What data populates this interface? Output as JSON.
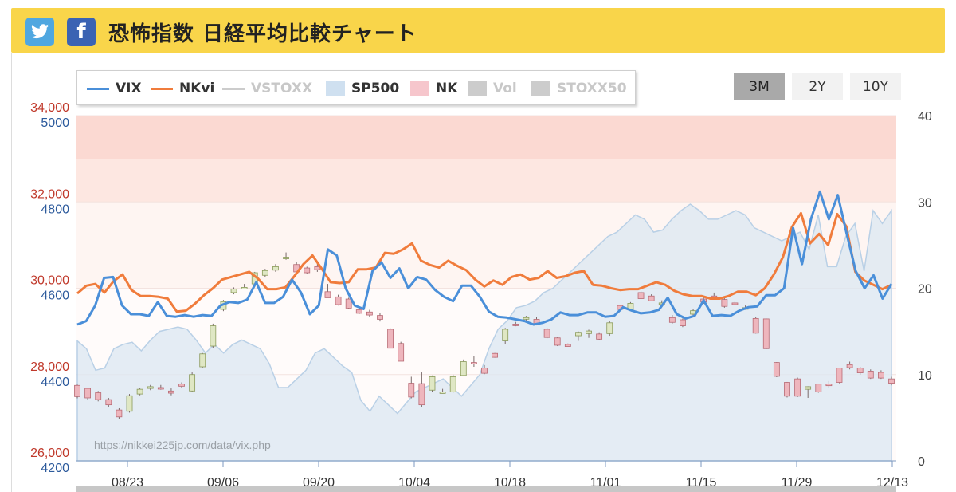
{
  "header": {
    "title": "恐怖指数 日経平均比較チャート",
    "twitter_icon": "twitter-bird-icon",
    "facebook_label": "f"
  },
  "legend": [
    {
      "label": "VIX",
      "kind": "line",
      "color": "#4a8fd9",
      "active": true
    },
    {
      "label": "NKvi",
      "kind": "line",
      "color": "#f07c3c",
      "active": true
    },
    {
      "label": "VSTOXX",
      "kind": "line",
      "color": "#cccccc",
      "active": false
    },
    {
      "label": "SP500",
      "kind": "box",
      "color": "#cfe0f0",
      "active": true
    },
    {
      "label": "NK",
      "kind": "box",
      "color": "#f6c6cc",
      "active": true
    },
    {
      "label": "Vol",
      "kind": "box",
      "color": "#cccccc",
      "active": false
    },
    {
      "label": "STOXX50",
      "kind": "box",
      "color": "#cccccc",
      "active": false
    }
  ],
  "range_buttons": [
    {
      "label": "3M",
      "active": true
    },
    {
      "label": "2Y",
      "active": false
    },
    {
      "label": "10Y",
      "active": false
    }
  ],
  "watermark": "https://nikkei225jp.com/data/vix.php",
  "colors": {
    "nk_axis": "#c0392b",
    "sp_axis": "#2c5a9c",
    "vix": "#4a8fd9",
    "nkvi": "#f07c3c",
    "sp500_area": "#dbe7f1",
    "up_candle": "#dfe7c4",
    "down_candle": "#eeb6bd"
  },
  "chart_data": {
    "type": "line",
    "x_ticks": [
      "08/23",
      "09/06",
      "09/20",
      "10/04",
      "10/18",
      "11/01",
      "11/15",
      "11/29",
      "12/13"
    ],
    "axes": {
      "nk": {
        "ticks": [
          "26,000",
          "28,000",
          "30,000",
          "32,000",
          "34,000"
        ],
        "range": [
          26000,
          34000
        ]
      },
      "sp500": {
        "ticks": [
          "4200",
          "4400",
          "4600",
          "4800",
          "5000"
        ],
        "range": [
          4200,
          5000
        ]
      },
      "vix": {
        "ticks": [
          "0",
          "10",
          "20",
          "30",
          "40"
        ],
        "range": [
          0,
          40
        ]
      }
    },
    "fear_bands": [
      {
        "from": 35,
        "to": 40,
        "color": "#fbd9d2"
      },
      {
        "from": 30,
        "to": 35,
        "color": "#fde7e1"
      },
      {
        "from": 20,
        "to": 30,
        "color": "#fef5f2"
      }
    ],
    "series": [
      {
        "name": "VIX",
        "axis": "vix",
        "values": [
          15.8,
          16.2,
          18.0,
          21.2,
          21.3,
          18.0,
          17.0,
          17.0,
          16.8,
          18.4,
          16.8,
          16.7,
          16.9,
          16.7,
          16.9,
          16.8,
          18.0,
          18.4,
          18.3,
          18.7,
          20.7,
          18.3,
          18.3,
          19.0,
          21.0,
          19.5,
          17.0,
          18.0,
          24.5,
          23.8,
          20.0,
          18.0,
          17.6,
          22.0,
          23.0,
          21.2,
          22.3,
          20.0,
          21.3,
          21.0,
          19.8,
          19.0,
          18.5,
          20.3,
          20.3,
          19.0,
          17.3,
          16.7,
          16.6,
          16.4,
          16.2,
          15.8,
          16.0,
          16.4,
          17.2,
          16.9,
          16.9,
          17.2,
          17.2,
          16.7,
          16.8,
          17.8,
          17.4,
          17.1,
          17.2,
          17.5,
          18.9,
          17.0,
          16.5,
          16.8,
          18.6,
          16.8,
          16.9,
          16.8,
          17.4,
          17.8,
          17.9,
          19.2,
          19.2,
          20.0,
          27.0,
          22.8,
          28.0,
          31.2,
          28.0,
          30.8,
          26.3,
          22.0,
          20.0,
          21.5,
          18.8,
          20.5
        ]
      },
      {
        "name": "NKvi",
        "axis": "vix",
        "values": [
          19.4,
          20.3,
          20.5,
          19.5,
          20.8,
          21.6,
          19.8,
          19.1,
          19.1,
          19.0,
          18.8,
          17.3,
          17.4,
          18.2,
          19.2,
          20.0,
          21.0,
          21.3,
          21.6,
          21.9,
          21.1,
          19.9,
          19.9,
          20.1,
          21.4,
          22.8,
          23.8,
          22.3,
          20.7,
          20.6,
          20.7,
          22.2,
          22.2,
          22.4,
          24.1,
          24.0,
          24.5,
          25.2,
          23.2,
          22.7,
          22.4,
          23.2,
          22.6,
          22.1,
          21.0,
          20.2,
          20.9,
          20.4,
          21.3,
          21.6,
          21.0,
          21.2,
          22.0,
          21.2,
          21.4,
          21.8,
          22.0,
          20.4,
          20.3,
          20.0,
          19.8,
          19.9,
          19.9,
          20.3,
          20.7,
          20.4,
          19.7,
          19.3,
          19.1,
          19.1,
          18.8,
          18.8,
          19.1,
          19.6,
          19.6,
          19.2,
          20.0,
          21.6,
          23.6,
          27.1,
          28.7,
          25.2,
          26.3,
          25.0,
          28.6,
          27.2,
          21.9,
          20.9,
          20.4,
          19.9,
          20.4
        ]
      },
      {
        "name": "SP500",
        "axis": "sp500",
        "values": [
          4478,
          4460,
          4410,
          4415,
          4460,
          4470,
          4475,
          4455,
          4480,
          4500,
          4505,
          4510,
          4505,
          4480,
          4450,
          4470,
          4450,
          4470,
          4480,
          4470,
          4460,
          4425,
          4370,
          4370,
          4390,
          4410,
          4450,
          4460,
          4440,
          4420,
          4405,
          4340,
          4315,
          4350,
          4330,
          4310,
          4335,
          4360,
          4370,
          4380,
          4390,
          4370,
          4350,
          4375,
          4400,
          4460,
          4505,
          4525,
          4555,
          4560,
          4570,
          4590,
          4600,
          4620,
          4640,
          4660,
          4680,
          4700,
          4720,
          4730,
          4750,
          4770,
          4760,
          4730,
          4735,
          4760,
          4780,
          4795,
          4780,
          4760,
          4760,
          4770,
          4780,
          4770,
          4740,
          4730,
          4720,
          4710,
          4720,
          4730,
          4690,
          4770,
          4650,
          4650,
          4720,
          4750,
          4640,
          4780,
          4750,
          4780
        ]
      },
      {
        "name": "NK",
        "axis": "nk",
        "type": "candlestick",
        "ohlc": [
          [
            27750,
            27770,
            27450,
            27490
          ],
          [
            27680,
            27700,
            27420,
            27460
          ],
          [
            27580,
            27620,
            27380,
            27420
          ],
          [
            27420,
            27460,
            27250,
            27300
          ],
          [
            27180,
            27220,
            26980,
            27020
          ],
          [
            27150,
            27550,
            27120,
            27510
          ],
          [
            27550,
            27700,
            27520,
            27660
          ],
          [
            27680,
            27760,
            27640,
            27720
          ],
          [
            27700,
            27760,
            27650,
            27690
          ],
          [
            27620,
            27680,
            27520,
            27570
          ],
          [
            27780,
            27820,
            27700,
            27730
          ],
          [
            27620,
            28050,
            27600,
            28000
          ],
          [
            28180,
            28500,
            28150,
            28480
          ],
          [
            28660,
            29180,
            28620,
            29130
          ],
          [
            29510,
            29730,
            29470,
            29690
          ],
          [
            29900,
            30020,
            29860,
            29980
          ],
          [
            30020,
            30100,
            29980,
            30020
          ],
          [
            30100,
            30380,
            30050,
            30360
          ],
          [
            30300,
            30450,
            30260,
            30410
          ],
          [
            30420,
            30560,
            30380,
            30500
          ],
          [
            30700,
            30830,
            30660,
            30720
          ],
          [
            30550,
            30600,
            30350,
            30380
          ],
          [
            30470,
            30500,
            30330,
            30360
          ],
          [
            30500,
            30560,
            30380,
            30430
          ],
          [
            29920,
            30100,
            29780,
            29780
          ],
          [
            29800,
            29850,
            29600,
            29620
          ],
          [
            29750,
            29780,
            29520,
            29540
          ],
          [
            29500,
            29560,
            29400,
            29420
          ],
          [
            29450,
            29500,
            29340,
            29380
          ],
          [
            29370,
            29430,
            29230,
            29280
          ],
          [
            29050,
            29070,
            28610,
            28610
          ],
          [
            28720,
            28760,
            28310,
            28310
          ],
          [
            27800,
            27950,
            27450,
            27480
          ],
          [
            27790,
            28050,
            27250,
            27300
          ],
          [
            27640,
            27980,
            27600,
            27950
          ],
          [
            27600,
            27670,
            27560,
            27600
          ],
          [
            27600,
            28000,
            27580,
            27950
          ],
          [
            27980,
            28350,
            27960,
            28300
          ],
          [
            28280,
            28420,
            28180,
            28250
          ],
          [
            28150,
            28220,
            28010,
            28030
          ],
          [
            28490,
            28500,
            28390,
            28400
          ],
          [
            28780,
            29080,
            28700,
            29050
          ],
          [
            29170,
            29220,
            29120,
            29150
          ],
          [
            29300,
            29360,
            29250,
            29320
          ],
          [
            29280,
            29330,
            29140,
            29180
          ],
          [
            29050,
            29080,
            28840,
            28860
          ],
          [
            28850,
            28880,
            28660,
            28680
          ],
          [
            28700,
            28720,
            28650,
            28650
          ],
          [
            28900,
            29000,
            28780,
            28980
          ],
          [
            28950,
            29040,
            28850,
            29010
          ],
          [
            28940,
            28980,
            28800,
            28820
          ],
          [
            28950,
            29250,
            28900,
            29200
          ],
          [
            29600,
            29610,
            29500,
            29510
          ],
          [
            29500,
            29680,
            29480,
            29650
          ],
          [
            29900,
            29940,
            29750,
            29760
          ],
          [
            29820,
            29860,
            29700,
            29710
          ],
          [
            29650,
            29720,
            29630,
            29660
          ],
          [
            29320,
            29380,
            29180,
            29210
          ],
          [
            29270,
            29300,
            29100,
            29130
          ],
          [
            29400,
            29520,
            29380,
            29480
          ],
          [
            29750,
            29800,
            29640,
            29680
          ],
          [
            29820,
            29900,
            29760,
            29810
          ],
          [
            29740,
            29780,
            29550,
            29580
          ],
          [
            29660,
            29700,
            29620,
            29640
          ],
          [
            29550,
            29600,
            29500,
            29550
          ],
          [
            29300,
            29330,
            28950,
            28960
          ],
          [
            29290,
            29300,
            28590,
            28600
          ],
          [
            28280,
            28290,
            27940,
            27960
          ],
          [
            27820,
            27830,
            27470,
            27500
          ],
          [
            27900,
            27930,
            27480,
            27500
          ],
          [
            27660,
            27730,
            27460,
            27720
          ],
          [
            27780,
            27790,
            27580,
            27600
          ],
          [
            27780,
            27850,
            27700,
            27750
          ],
          [
            28150,
            28160,
            27800,
            27820
          ],
          [
            28230,
            28300,
            28120,
            28160
          ],
          [
            28150,
            28180,
            28000,
            28040
          ],
          [
            28080,
            28120,
            27900,
            27920
          ],
          [
            28050,
            28100,
            27900,
            27920
          ],
          [
            27900,
            27950,
            27750,
            27800
          ]
        ]
      }
    ]
  }
}
